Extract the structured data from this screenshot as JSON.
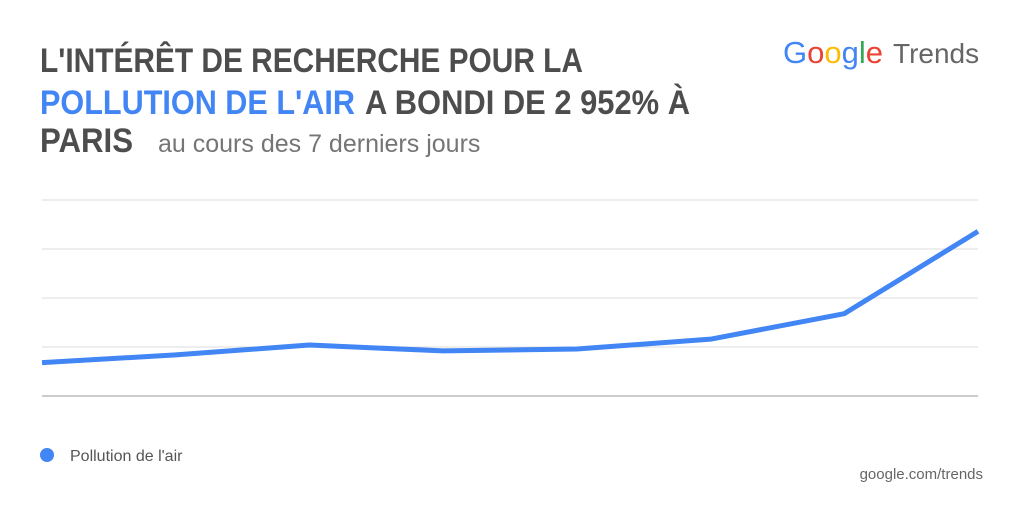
{
  "chart_data": {
    "type": "line",
    "title_parts": [
      "L'INTÉRÊT DE RECHERCHE POUR LA",
      "POLLUTION DE L'AIR",
      "A BONDI DE 2 952% À",
      "PARIS"
    ],
    "subtitle": "au cours des 7 derniers jours",
    "logo": [
      "Google",
      "Trends"
    ],
    "source": "google.com/trends",
    "categories": [
      null,
      null,
      null,
      null,
      null,
      null,
      null,
      null
    ],
    "series": [
      {
        "name": "Pollution de l'air",
        "color": "#4285f4",
        "values": [
          17,
          21,
          26,
          23,
          24,
          29,
          42,
          84
        ]
      }
    ],
    "ylim": [
      0,
      100
    ],
    "yticks": [
      0,
      25,
      50,
      75,
      100
    ],
    "grid": true
  }
}
